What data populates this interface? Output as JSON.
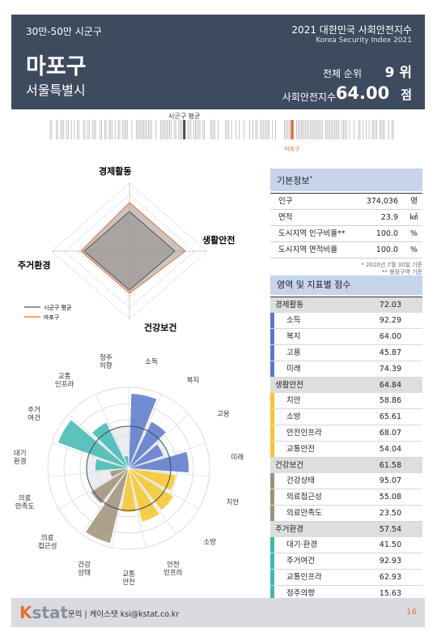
{
  "header": {
    "category": "30만-50만 시군구",
    "district": "마포구",
    "city": "서울특별시",
    "index_title": "2021 대한민국 사회안전지수",
    "index_subtitle": "Korea Security Index 2021",
    "rank_label": "전체 순위",
    "rank_value": "9 위",
    "score_label": "사회안전지수",
    "score_value": "64.00",
    "score_unit": "점"
  },
  "rank_strip": {
    "avg_label": "시군구 평균",
    "self_label": "마포구",
    "avg_position": 0.39,
    "self_position": 0.7
  },
  "radar": {
    "axes": [
      "경제활동",
      "생활안전",
      "건강보건",
      "주거환경"
    ],
    "legend": {
      "avg": "시군구 평균",
      "self": "마포구"
    },
    "colors": {
      "avg": "#555555",
      "self": "#e8712f",
      "fill": "#c9c4c2"
    }
  },
  "basic_info": {
    "title": "기본정보",
    "title_mark": "*",
    "rows": [
      {
        "label": "인구",
        "value": "374,036",
        "unit": "명"
      },
      {
        "label": "면적",
        "value": "23.9",
        "unit": "㎢"
      },
      {
        "label": "도시지역 인구비율**",
        "value": "100.0",
        "unit": "%"
      },
      {
        "label": "도시지역 면적비율",
        "value": "100.0",
        "unit": "%"
      }
    ],
    "note1": "* 2020년 7월 30일 기준",
    "note2": "** 행정구역 기준"
  },
  "scores": {
    "title": "영역 및 지표별 점수",
    "groups": [
      {
        "name": "경제활동",
        "value": "72.03",
        "color": "#5b78c9",
        "items": [
          {
            "label": "소득",
            "value": "92.29"
          },
          {
            "label": "복지",
            "value": "64.00"
          },
          {
            "label": "고용",
            "value": "45.87"
          },
          {
            "label": "미래",
            "value": "74.39"
          }
        ]
      },
      {
        "name": "생활안전",
        "value": "64.84",
        "color": "#f6c52a",
        "items": [
          {
            "label": "치안",
            "value": "58.86"
          },
          {
            "label": "소방",
            "value": "65.61"
          },
          {
            "label": "안전인프라",
            "value": "68.07"
          },
          {
            "label": "교통안전",
            "value": "54.04"
          }
        ]
      },
      {
        "name": "건강보건",
        "value": "61.58",
        "color": "#a09077",
        "items": [
          {
            "label": "건강상태",
            "value": "95.07"
          },
          {
            "label": "의료접근성",
            "value": "55.08"
          },
          {
            "label": "의료만족도",
            "value": "23.50"
          }
        ]
      },
      {
        "name": "주거환경",
        "value": "57.54",
        "color": "#3fb9b0",
        "items": [
          {
            "label": "대기·환경",
            "value": "41.50"
          },
          {
            "label": "주거여건",
            "value": "92.93"
          },
          {
            "label": "교통인프라",
            "value": "62.93"
          },
          {
            "label": "정주의향",
            "value": "15.63"
          }
        ]
      }
    ]
  },
  "rose": {
    "labels": [
      "소득",
      "복지",
      "고용",
      "미래",
      "치안",
      "소방",
      "안전\n인프라",
      "교통\n안전",
      "건강\n상태",
      "의료\n접근성",
      "의료\n만족도",
      "대기\n환경",
      "주거\n여건",
      "교통\n인프라",
      "정주\n의향"
    ]
  },
  "footer": {
    "logo_k": "K",
    "logo_rest": "stat",
    "contact": "문의 | 케이스탯 ksi@kstat.co.kr",
    "page": "16"
  }
}
